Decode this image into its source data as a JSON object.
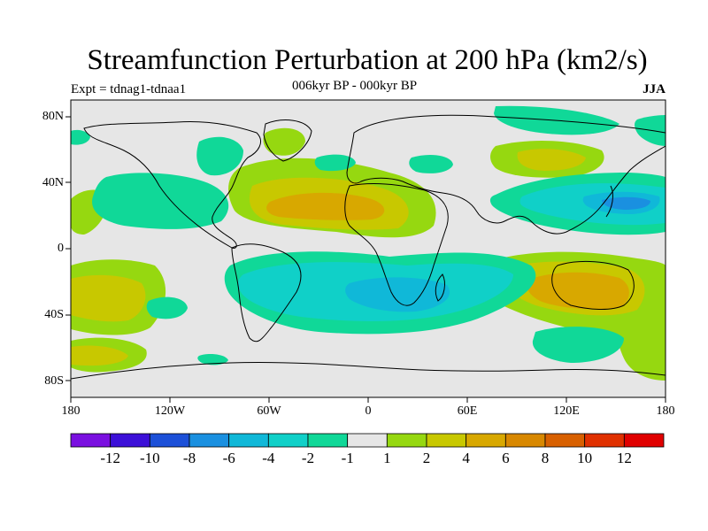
{
  "title": "Streamfunction Perturbation at 200 hPa (km2/s)",
  "subtitle_left": "Expt = tdnag1-tdnaa1",
  "subtitle_center": "006kyr BP - 000kyr BP",
  "subtitle_right": "JJA",
  "lat_labels": [
    "80N",
    "40N",
    "0",
    "40S",
    "80S"
  ],
  "lon_labels": [
    "180",
    "120W",
    "60W",
    "0",
    "60E",
    "120E",
    "180"
  ],
  "colorbar": {
    "colors": [
      "#7a10e0",
      "#3c10d8",
      "#1c50d8",
      "#1a90e0",
      "#10b8d8",
      "#10d0c8",
      "#10d898",
      "#e6e6e6",
      "#96d810",
      "#c8c800",
      "#d8a800",
      "#d88800",
      "#d86000",
      "#e03000",
      "#e00000"
    ],
    "labels": [
      "-12",
      "-10",
      "-8",
      "-6",
      "-4",
      "-2",
      "-1",
      "1",
      "2",
      "4",
      "6",
      "8",
      "10",
      "12"
    ]
  },
  "map": {
    "background": "#e6e6e6",
    "coast_color": "#000000"
  }
}
